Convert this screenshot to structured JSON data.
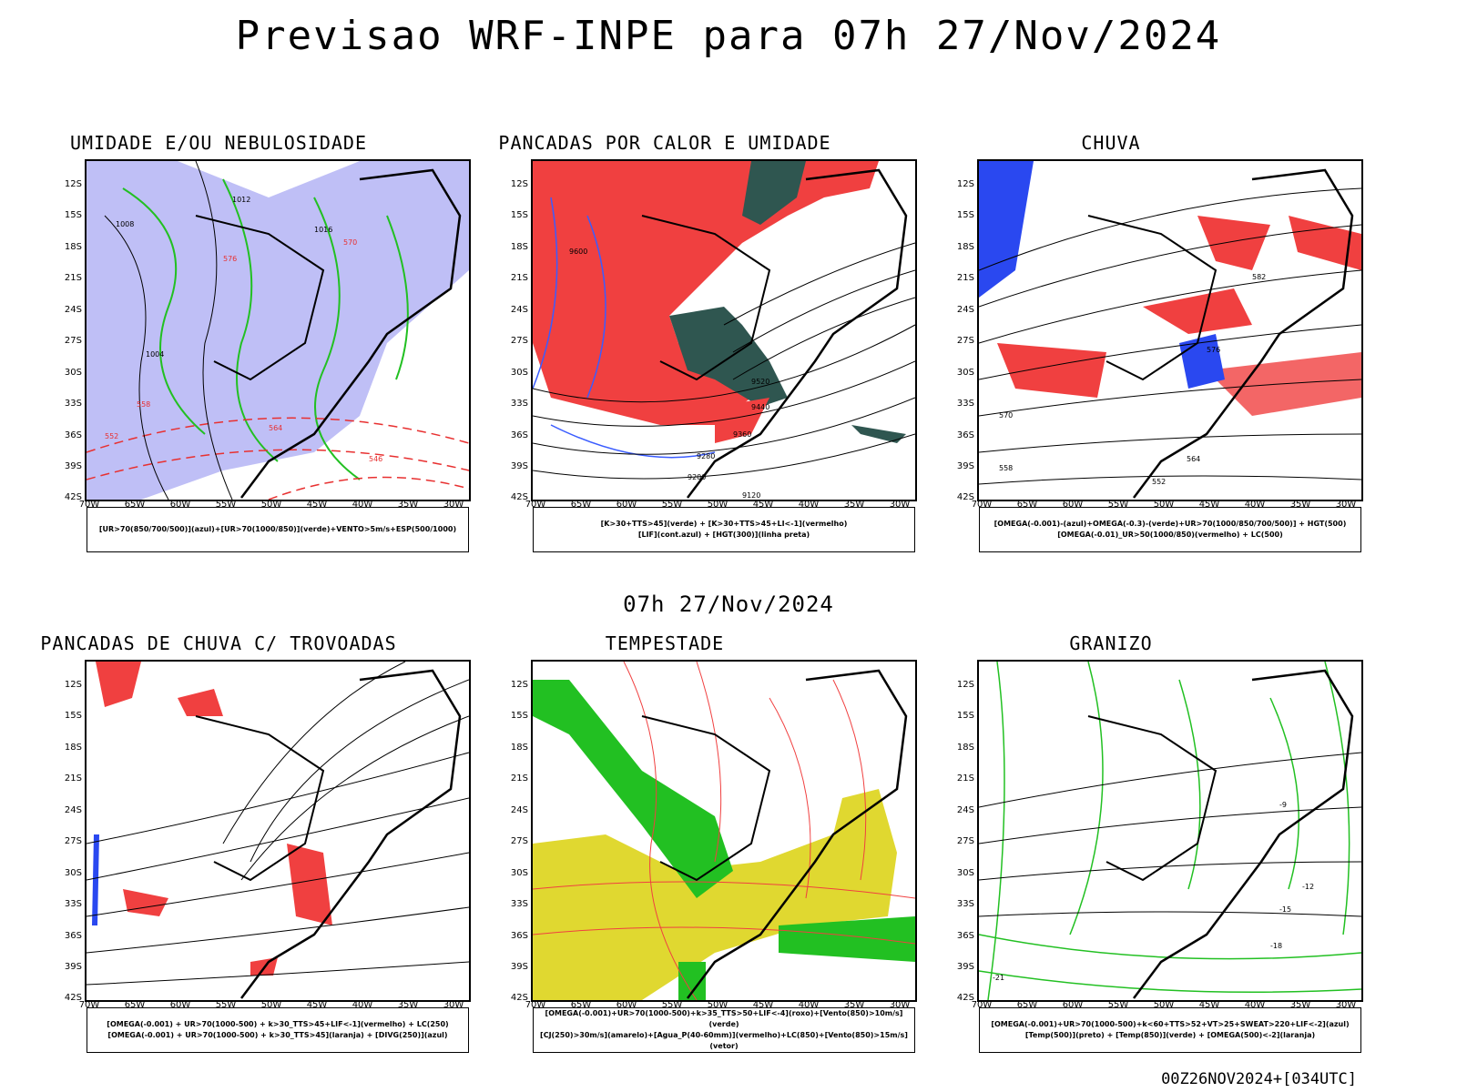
{
  "title": "Previsao WRF-INPE  para 07h 27/Nov/2024",
  "mid_date": "07h 27/Nov/2024",
  "footer": "00Z26NOV2024+[034UTC]",
  "lat_labels": [
    "12S",
    "15S",
    "18S",
    "21S",
    "24S",
    "27S",
    "30S",
    "33S",
    "36S",
    "39S",
    "42S"
  ],
  "lon_labels": [
    "70W",
    "65W",
    "60W",
    "55W",
    "50W",
    "45W",
    "40W",
    "35W",
    "30W"
  ],
  "panels": [
    {
      "title": "UMIDADE E/OU NEBULOSIDADE",
      "legend": [
        "[UR>70(850/700/500)](azul)+[UR>70(1000/850)](verde)+VENTO>5m/s+ESP(500/1000)"
      ]
    },
    {
      "title": "PANCADAS POR CALOR E UMIDADE",
      "legend": [
        "[K>30+TTS>45](verde) + [K>30+TTS>45+LI<-1](vermelho)",
        "[LIF](cont.azul) + [HGT(300)](linha preta)"
      ]
    },
    {
      "title": "CHUVA",
      "legend": [
        "[OMEGA(-0.001)-(azul)+OMEGA(-0.3)-(verde)+UR>70(1000/850/700/500)] + HGT(500)",
        "[OMEGA(-0.01)_UR>50(1000/850)(vermelho) + LC(500)"
      ]
    },
    {
      "title": "PANCADAS DE CHUVA C/ TROVOADAS",
      "legend": [
        "[OMEGA(-0.001) + UR>70(1000-500) + k>30_TTS>45+LIF<-1](vermelho) + LC(250)",
        "[OMEGA(-0.001) + UR>70(1000-500) + k>30_TTS>45](laranja) + [DIVG(250)](azul)"
      ]
    },
    {
      "title": "TEMPESTADE",
      "legend": [
        "[OMEGA(-0.001)+UR>70(1000-500)+k>35_TTS>50+LIF<-4](roxo)+[Vento(850)>10m/s](verde)",
        "[CJ(250)>30m/s](amarelo)+[Agua_P(40-60mm)](vermelho)+LC(850)+[Vento(850)>15m/s](vetor)"
      ]
    },
    {
      "title": "GRANIZO",
      "legend": [
        "[OMEGA(-0.001)+UR>70(1000-500)+k<60+TTS>52+VT>25+SWEAT>220+LIF<-2](azul)",
        "[Temp(500)](preto) + [Temp(850)](verde) + [OMEGA(500)<-2](laranja)"
      ]
    }
  ],
  "contour_labels": {
    "p1": [
      "1008",
      "1012",
      "1016",
      "1004",
      "576",
      "570",
      "564",
      "558",
      "552",
      "546"
    ],
    "p2": [
      "9600",
      "9520",
      "9440",
      "9360",
      "9280",
      "9200",
      "9120"
    ],
    "p3": [
      "582",
      "576",
      "570",
      "564",
      "558",
      "552"
    ],
    "p6": [
      "-9",
      "-12",
      "-15",
      "-18",
      "-21"
    ]
  }
}
